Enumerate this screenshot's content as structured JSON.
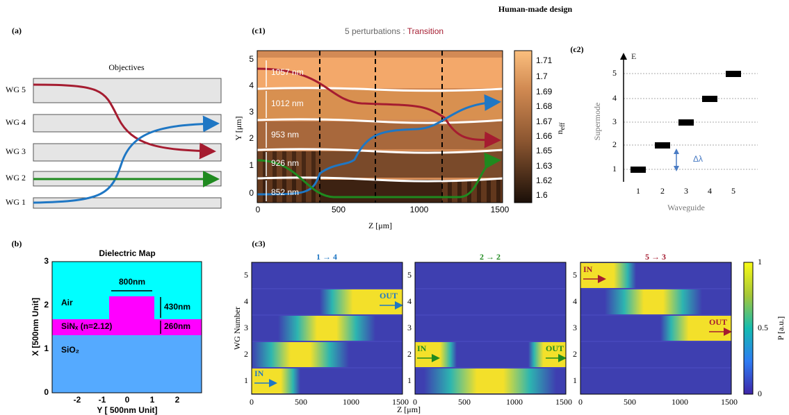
{
  "title": "Human-made design",
  "panel_a": {
    "label": "(a)",
    "title": "Objectives",
    "waveguides": [
      "WG 5",
      "WG 4",
      "WG 3",
      "WG 2",
      "WG 1"
    ]
  },
  "panel_b": {
    "label": "(b)",
    "title": "Dielectric Map",
    "regions": [
      "Air",
      "SiNₓ (n=2.12)",
      "SiO₂"
    ],
    "dimensions": [
      "800nm",
      "430nm",
      "260nm"
    ],
    "xlabel": "Y [ 500nm Unit]",
    "ylabel": "X [500nm Unit]",
    "xticks": [
      "-2",
      "-1",
      "0",
      "1",
      "2"
    ],
    "yticks": [
      "0",
      "1",
      "2",
      "3"
    ]
  },
  "panel_c1": {
    "label": "(c1)",
    "subtitle": {
      "prefix": "5 perturbations : ",
      "highlight": "Transition"
    },
    "widths": [
      "1057 nm",
      "1012 nm",
      "953 nm",
      "926 nm",
      "852 nm"
    ],
    "xlabel": "Z [μm]",
    "ylabel": "Y [μm]",
    "xticks": [
      "0",
      "500",
      "1000",
      "1500"
    ],
    "yticks": [
      "0",
      "1",
      "2",
      "3",
      "4",
      "5"
    ],
    "colorbar": {
      "label": {
        "main": "n",
        "sub": "eff"
      },
      "ticks": [
        "1.71",
        "1.7",
        "1.69",
        "1.68",
        "1.67",
        "1.66",
        "1.65",
        "1.63",
        "1.62",
        "1.6"
      ]
    }
  },
  "panel_c2": {
    "label": "(c2)",
    "axis_name": "E",
    "xlabel": "Waveguide",
    "ylabel": "Supermode",
    "xticks": [
      "1",
      "2",
      "3",
      "4",
      "5"
    ],
    "yticks": [
      "1",
      "2",
      "3",
      "4",
      "5"
    ],
    "annotation": "Δλ"
  },
  "panel_c3": {
    "label": "(c3)",
    "ylabel": "WG Number",
    "xlabel": "Z [μm]",
    "xticks": [
      "0",
      "500",
      "1000",
      "1500"
    ],
    "yticks": [
      "1",
      "2",
      "3",
      "4",
      "5"
    ],
    "plots": [
      {
        "title": "1 → 4",
        "in": "IN",
        "out": "OUT"
      },
      {
        "title": "2 → 2",
        "in": "IN",
        "out": "OUT"
      },
      {
        "title": "5 → 3",
        "in": "IN",
        "out": "OUT"
      }
    ],
    "colorbar": {
      "label": "P [a.u.]",
      "ticks": [
        "0",
        "0.5",
        "1"
      ]
    }
  }
}
